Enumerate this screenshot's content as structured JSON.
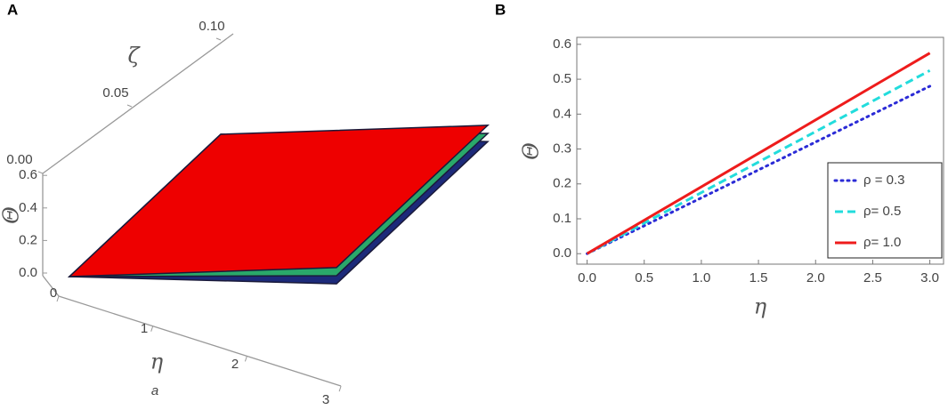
{
  "chart_data": [
    {
      "type": "surface3d",
      "panel_label": "A",
      "x_label": "η",
      "x_caption": "a",
      "y_label": "ζ",
      "z_label": "Θ",
      "xticks": [
        0,
        1,
        2,
        3
      ],
      "yticks": [
        {
          "value": 0,
          "label": "0.00"
        },
        0.05,
        {
          "value": 0.1,
          "label": "0.10"
        }
      ],
      "zticks": [
        {
          "value": 0,
          "label": "0.0"
        },
        0.2,
        0.4,
        0.6
      ],
      "x": [
        0,
        3
      ],
      "y": [
        0,
        0.1
      ],
      "series": [
        {
          "color": "#1c2a7a",
          "values": [
            0,
            0.48
          ]
        },
        {
          "color": "#2aa86a",
          "values": [
            0,
            0.53
          ]
        },
        {
          "color": "#ee0000",
          "values": [
            0,
            0.58
          ]
        }
      ]
    },
    {
      "type": "line",
      "panel_label": "B",
      "x_label": "η",
      "y_label": "Θ",
      "x": [
        0,
        3
      ],
      "series": [
        {
          "name": "ρ = 0.3",
          "color": "#2b2bd6",
          "style": "dotted",
          "values": [
            0,
            0.48
          ]
        },
        {
          "name": "ρ= 0.5",
          "color": "#22dcdc",
          "style": "dashed",
          "values": [
            0,
            0.525
          ]
        },
        {
          "name": "ρ= 1.0",
          "color": "#ee1c1c",
          "style": "solid",
          "values": [
            0,
            0.575
          ]
        }
      ],
      "xlim": [
        -0.09,
        3.12
      ],
      "ylim": [
        -0.03,
        0.62
      ],
      "xticks": [
        {
          "value": 0,
          "label": "0.0"
        },
        0.5,
        {
          "value": 1,
          "label": "1.0"
        },
        1.5,
        {
          "value": 2,
          "label": "2.0"
        },
        2.5,
        {
          "value": 3,
          "label": "3.0"
        }
      ],
      "yticks": [
        {
          "value": 0,
          "label": "0.0"
        },
        0.1,
        0.2,
        0.3,
        0.4,
        0.5,
        0.6
      ],
      "legend": "lower right"
    }
  ]
}
